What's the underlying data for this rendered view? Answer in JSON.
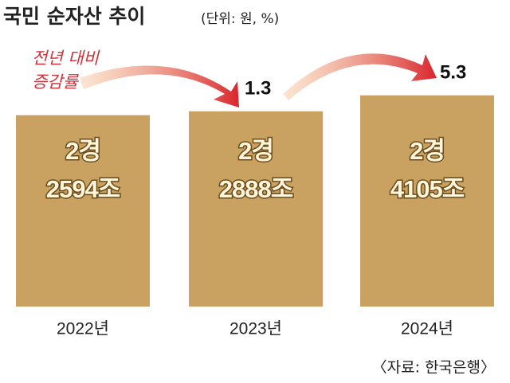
{
  "chart_data": {
    "type": "bar",
    "title": "국민 순자산 추이",
    "subtitle": "(단위: 원, %)",
    "categories": [
      "2022년",
      "2023년",
      "2024년"
    ],
    "values": [
      22594,
      22888,
      24105
    ],
    "value_labels": [
      [
        "2경",
        "2594조"
      ],
      [
        "2경",
        "2888조"
      ],
      [
        "2경",
        "4105조"
      ]
    ],
    "color": "#c9a160",
    "ylim": [
      8000,
      25000
    ],
    "growth_label": [
      "전년 대비",
      "증감률"
    ],
    "growth_values": [
      1.3,
      5.3
    ],
    "source": "〈자료: 한국은행〉"
  }
}
